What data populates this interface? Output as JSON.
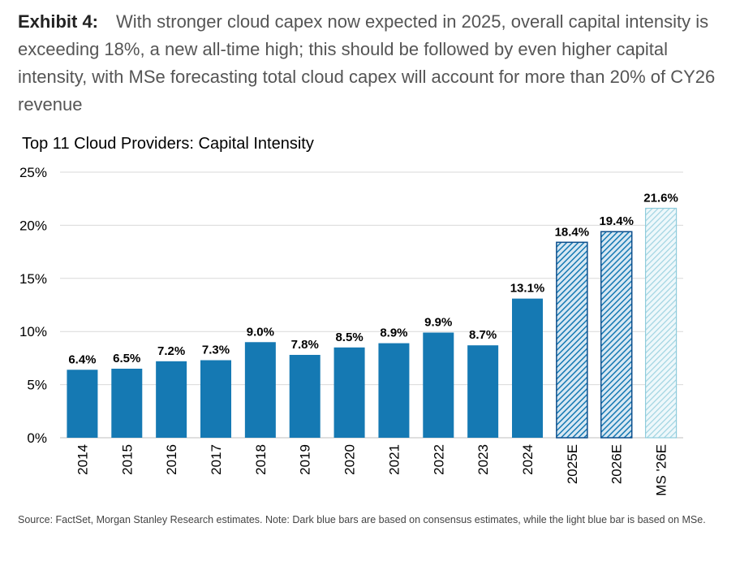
{
  "exhibit": {
    "label": "Exhibit 4:",
    "text": "With stronger cloud capex now expected in 2025, overall capital intensity is exceeding 18%, a new all-time high; this should be followed by even higher capital intensity, with MSe forecasting total cloud capex will account for more than 20% of CY26 revenue"
  },
  "source": "Source: FactSet, Morgan Stanley Research estimates. Note: Dark blue bars are based on consensus estimates, while the light blue bar is based on MSe.",
  "chart_data": {
    "type": "bar",
    "title": "Top 11 Cloud Providers: Capital Intensity",
    "xlabel": "",
    "ylabel": "",
    "ylim": [
      0,
      25
    ],
    "yticks": [
      "0%",
      "5%",
      "10%",
      "15%",
      "20%",
      "25%"
    ],
    "grid": true,
    "categories": [
      "2014",
      "2015",
      "2016",
      "2017",
      "2018",
      "2019",
      "2020",
      "2021",
      "2022",
      "2023",
      "2024",
      "2025E",
      "2026E",
      "MS '26E"
    ],
    "values": [
      6.4,
      6.5,
      7.2,
      7.3,
      9.0,
      7.8,
      8.5,
      8.9,
      9.9,
      8.7,
      13.1,
      18.4,
      19.4,
      21.6
    ],
    "data_labels": [
      "6.4%",
      "6.5%",
      "7.2%",
      "7.3%",
      "9.0%",
      "7.8%",
      "8.5%",
      "8.9%",
      "9.9%",
      "8.7%",
      "13.1%",
      "18.4%",
      "19.4%",
      "21.6%"
    ],
    "styles": [
      "solid",
      "solid",
      "solid",
      "solid",
      "solid",
      "solid",
      "solid",
      "solid",
      "solid",
      "solid",
      "solid",
      "hatched-dark",
      "hatched-dark",
      "hatched-light"
    ],
    "colors": {
      "solid": "#1579B3",
      "dark_outline": "#0E4F8C",
      "light": "#8FCCDC"
    }
  }
}
